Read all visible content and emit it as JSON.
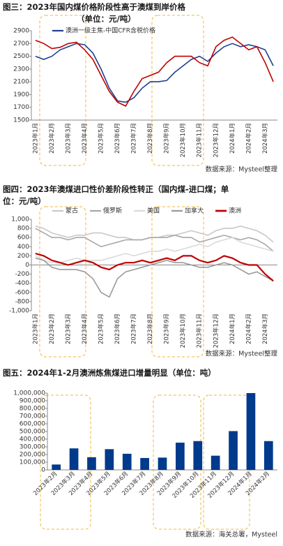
{
  "chart_data": [
    {
      "type": "line",
      "title": "图三：2023年国内煤价格阶段性高于澳煤到岸价格",
      "subtitle": "（单位：元/吨）",
      "source": "数据来源：Mysteel整理",
      "categories": [
        "2023年1月",
        null,
        "2023年2月",
        null,
        "2023年3月",
        null,
        "2023年4月",
        null,
        "2023年5月",
        null,
        "2023年6月",
        null,
        "2023年7月",
        null,
        "2023年8月",
        null,
        "2023年9月",
        null,
        "2023年10月",
        null,
        "2023年11月",
        null,
        "2023年12月",
        null,
        "2024年1月",
        null,
        "2024年2月",
        null,
        "2024年3月",
        null
      ],
      "series": [
        {
          "name": "澳洲一级主焦-中国CFR含税价格",
          "color": "#1f3f8f",
          "values": [
            2500,
            2450,
            2500,
            2600,
            2650,
            2700,
            2680,
            2550,
            2300,
            2000,
            1800,
            1780,
            1850,
            2000,
            2100,
            2100,
            2120,
            2250,
            2350,
            2450,
            2500,
            2420,
            2550,
            2650,
            2700,
            2650,
            2680,
            2650,
            2600,
            2350
          ]
        },
        {
          "color": "#c00000",
          "values": [
            2750,
            2700,
            2620,
            2640,
            2700,
            2720,
            2600,
            2450,
            2200,
            1950,
            1780,
            1720,
            1950,
            2150,
            2200,
            2250,
            2400,
            2500,
            2500,
            2500,
            2400,
            2350,
            2650,
            2750,
            2800,
            2700,
            2600,
            2650,
            2400,
            2100
          ]
        }
      ],
      "ylim": [
        1500,
        2900
      ],
      "yticks": [
        1500,
        1700,
        1900,
        2100,
        2300,
        2500,
        2700,
        2900
      ],
      "grid": false
    },
    {
      "type": "line",
      "title": "图四：2023年澳煤进口性价差阶段性转正（国内煤-进口煤；单位：元/吨）",
      "source": "数据来源：Mysteel整理",
      "categories": [
        "2023年1月",
        null,
        "2023年2月",
        null,
        "2023年3月",
        null,
        "2023年4月",
        null,
        "2023年5月",
        null,
        "2023年6月",
        null,
        "2023年7月",
        null,
        "2023年8月",
        null,
        "2023年9月",
        null,
        "2023年10月",
        null,
        "2023年11月",
        null,
        "2023年12月",
        null,
        "2024年1月",
        null,
        "2024年2月",
        null,
        "2024年3月",
        null
      ],
      "series": [
        {
          "name": "蒙古",
          "color": "#c8c8c8",
          "values": [
            850,
            800,
            700,
            650,
            600,
            650,
            650,
            700,
            700,
            650,
            600,
            600,
            550,
            550,
            600,
            600,
            650,
            650,
            700,
            750,
            700,
            650,
            750,
            800,
            800,
            850,
            800,
            750,
            650,
            500
          ]
        },
        {
          "name": "俄罗斯",
          "color": "#a8a8a8",
          "values": [
            800,
            700,
            600,
            600,
            550,
            600,
            600,
            500,
            400,
            450,
            500,
            550,
            550,
            550,
            600,
            600,
            600,
            650,
            600,
            600,
            500,
            550,
            600,
            650,
            600,
            550,
            600,
            550,
            450,
            300
          ]
        },
        {
          "name": "美国",
          "color": "#dadada",
          "values": [
            200,
            100,
            50,
            50,
            100,
            150,
            100,
            100,
            100,
            150,
            200,
            250,
            200,
            250,
            300,
            300,
            350,
            300,
            350,
            400,
            450,
            400,
            500,
            550,
            600,
            500,
            450,
            400,
            350,
            300
          ]
        },
        {
          "name": "加拿大",
          "color": "#999999",
          "values": [
            150,
            100,
            -50,
            -100,
            -100,
            -100,
            -150,
            -300,
            -600,
            -700,
            -300,
            -150,
            -100,
            -50,
            0,
            50,
            100,
            50,
            50,
            0,
            -50,
            -50,
            0,
            50,
            0,
            -100,
            -200,
            -150,
            -250,
            -350
          ]
        },
        {
          "name": "澳洲",
          "color": "#c00000",
          "values": [
            250,
            200,
            100,
            50,
            0,
            50,
            100,
            50,
            -50,
            -100,
            0,
            50,
            50,
            100,
            50,
            100,
            150,
            100,
            200,
            200,
            100,
            50,
            100,
            200,
            150,
            50,
            0,
            0,
            -200,
            -350
          ]
        }
      ],
      "ylim": [
        -1000,
        1000
      ],
      "yticks": [
        {
          "value": -1000,
          "label": "-1,000"
        },
        -800,
        -600,
        -400,
        -200,
        0,
        200,
        400,
        600,
        800,
        {
          "value": 1000,
          "label": "1,000"
        }
      ],
      "grid": false
    },
    {
      "type": "bar",
      "title": "图五：2024年1-2月澳洲炼焦煤进口增量明显（单位：吨）",
      "source": "数据来源：海关总署，Mysteel",
      "categories": [
        "2023年2月",
        "2023年3月",
        "2023年4月",
        "2023年5月",
        "2023年6月",
        "2023年7月",
        "2023年8月",
        "2023年9月",
        "2023年10月",
        "2023年11月",
        "2023年12月",
        "2024年1月",
        "2024年2月"
      ],
      "values": [
        70000,
        280000,
        165000,
        270000,
        210000,
        155000,
        160000,
        355000,
        375000,
        185000,
        505000,
        1000000,
        375000
      ],
      "color": "#003a8c",
      "ylim": [
        0,
        1000000
      ],
      "yticks": [
        0,
        {
          "value": 100000,
          "label": "100,000"
        },
        {
          "value": 200000,
          "label": "200,000"
        },
        {
          "value": 300000,
          "label": "300,000"
        },
        {
          "value": 400000,
          "label": "400,000"
        },
        {
          "value": 500000,
          "label": "500,000"
        },
        {
          "value": 600000,
          "label": "600,000"
        },
        {
          "value": 700000,
          "label": "700,000"
        },
        {
          "value": 800000,
          "label": "800,000"
        },
        {
          "value": 900000,
          "label": "900,000"
        },
        {
          "value": 1000000,
          "label": "1,000,000"
        }
      ],
      "grid": false
    }
  ]
}
